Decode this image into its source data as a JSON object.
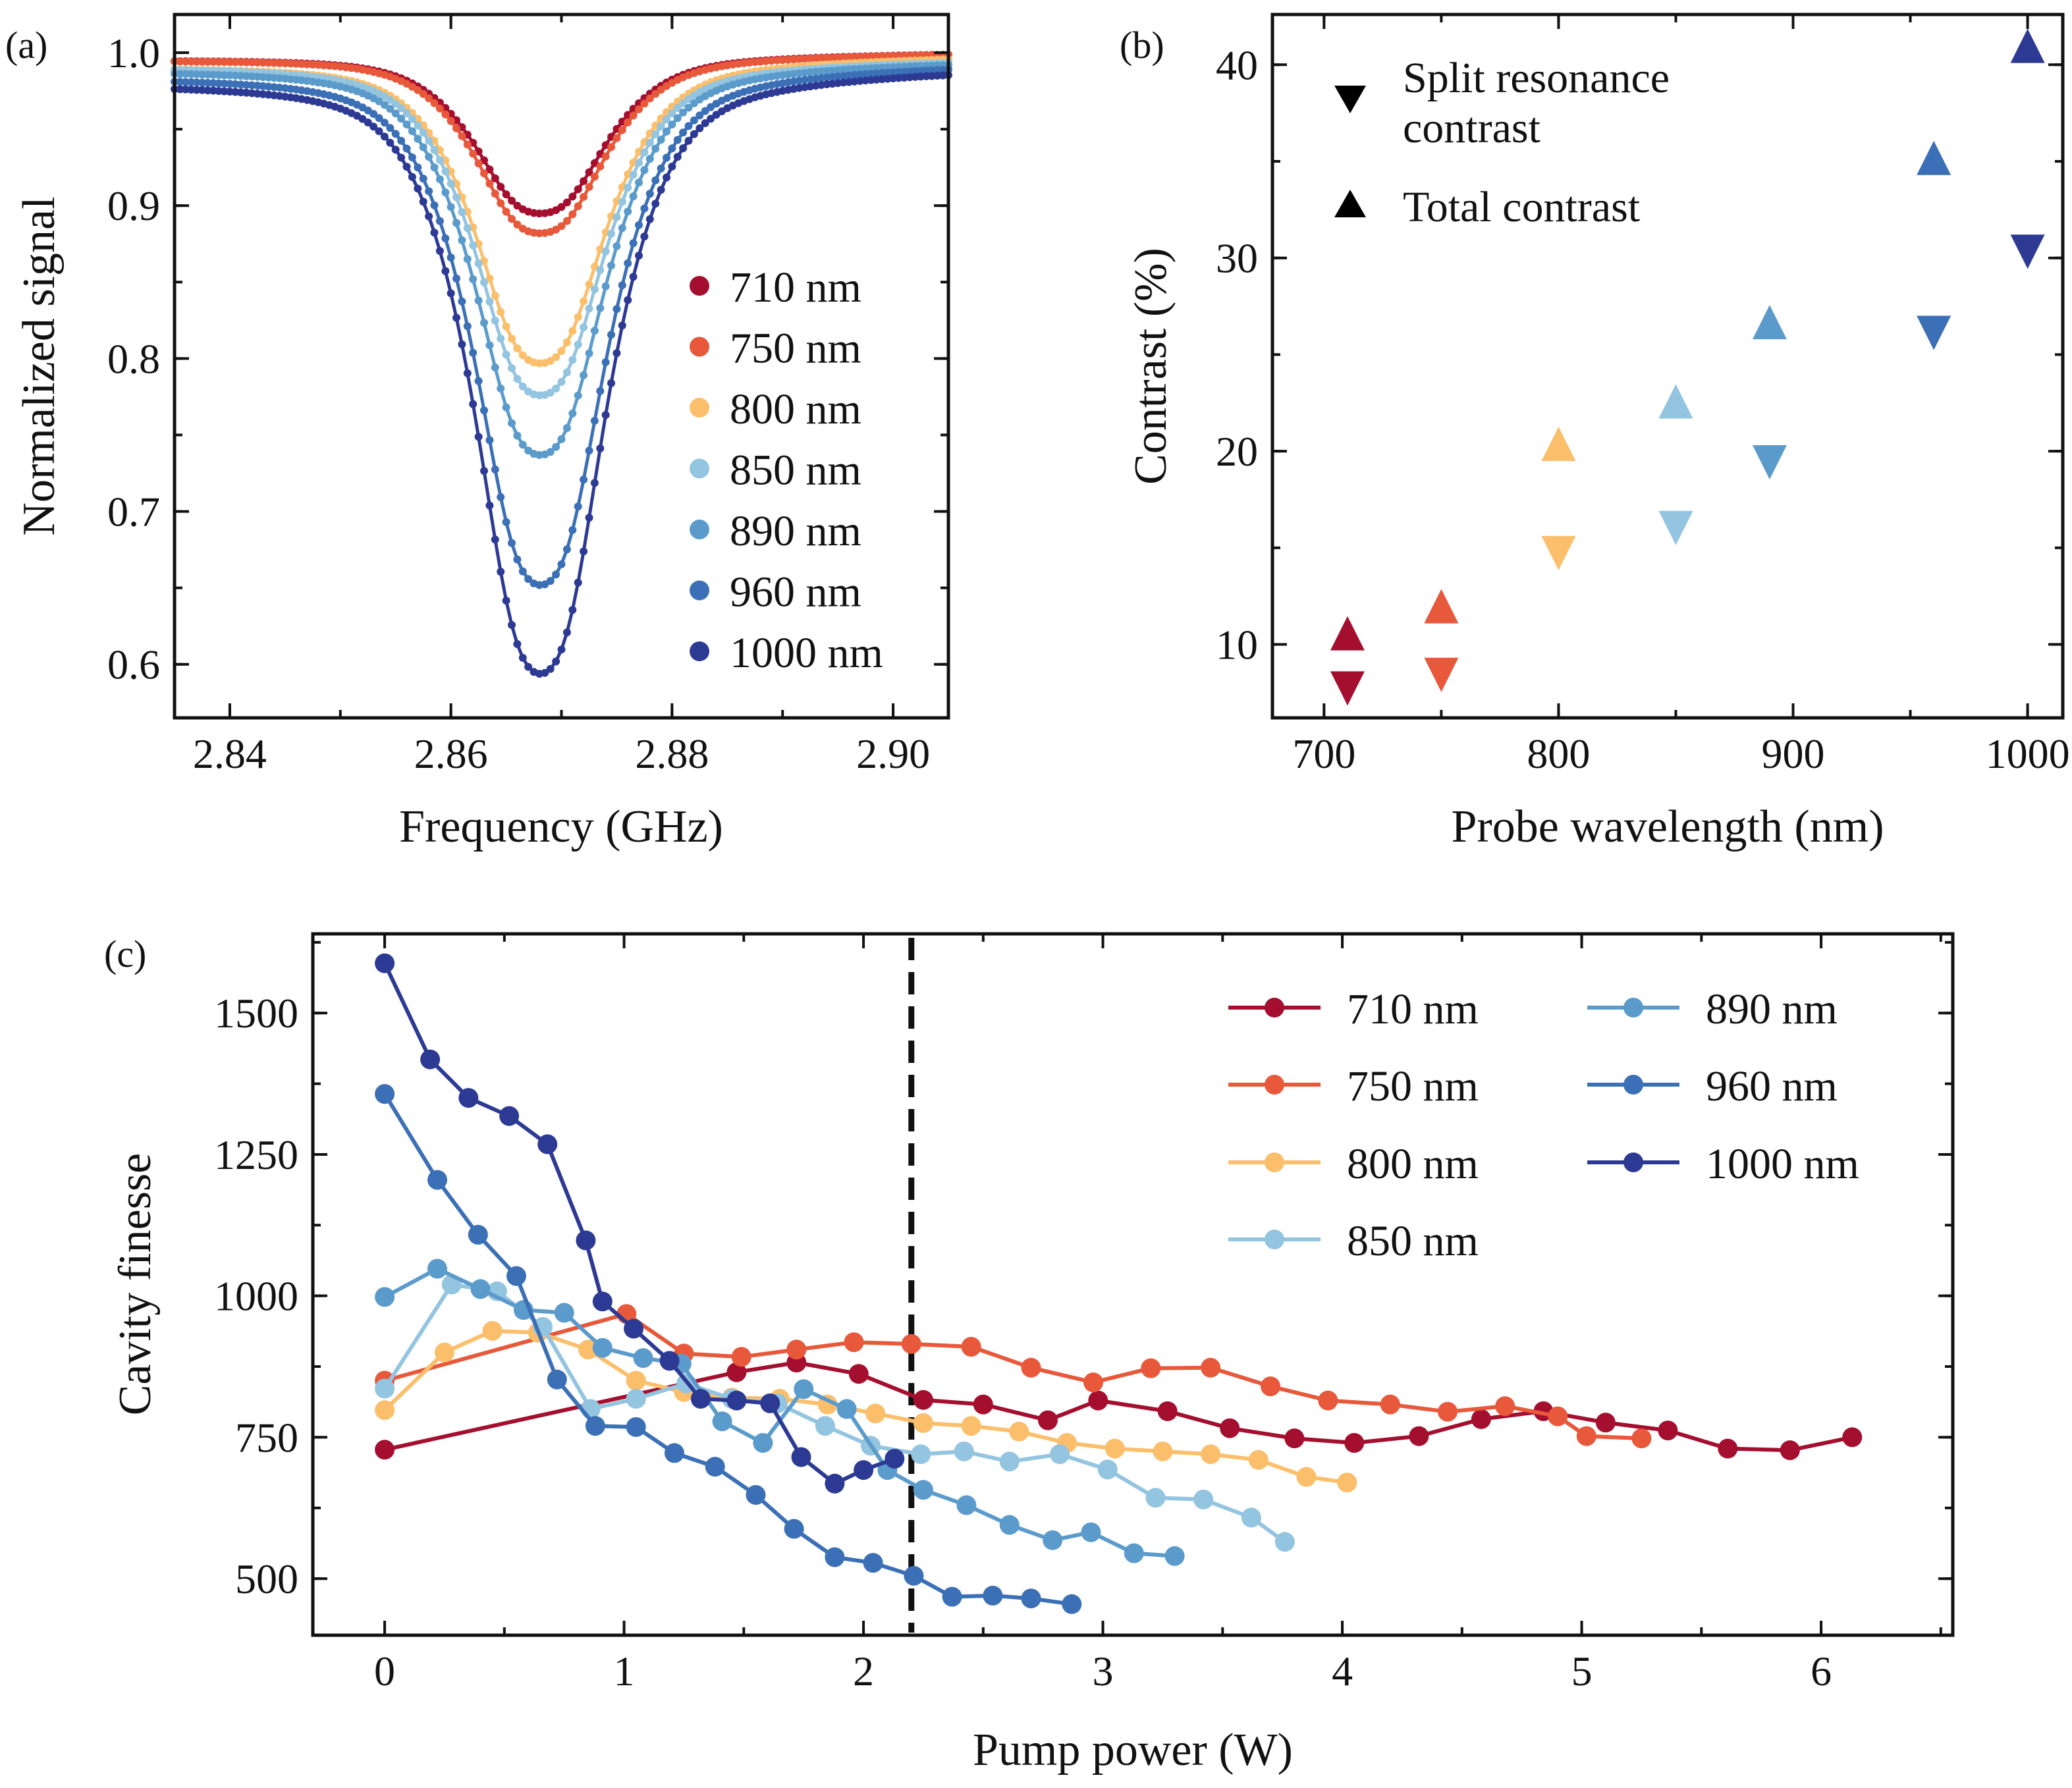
{
  "colors": {
    "710": "#a50f2f",
    "750": "#e8583a",
    "800": "#fbbf6c",
    "850": "#93c4e0",
    "890": "#5b9bcc",
    "960": "#3b6fb6",
    "1000": "#2d3a94"
  },
  "chart_data": [
    {
      "id": "a",
      "panel_label": "(a)",
      "type": "scatter",
      "title": "",
      "xlabel": "Frequency (GHz)",
      "ylabel": "Normalized signal",
      "xlim": [
        2.835,
        2.905
      ],
      "ylim": [
        0.565,
        1.025
      ],
      "xticks": [
        2.84,
        2.86,
        2.88,
        2.9
      ],
      "xtick_labels": [
        "2.84",
        "2.86",
        "2.88",
        "2.90"
      ],
      "yticks": [
        0.6,
        0.7,
        0.8,
        0.9,
        1.0
      ],
      "ytick_labels": [
        "0.6",
        "0.7",
        "0.8",
        "0.9",
        "1.0"
      ],
      "legend_position": "right",
      "resonance": {
        "centers_ghz": [
          2.8657,
          2.8705
        ],
        "width_ghz": 0.0046,
        "frequency_step_ghz": 0.0005
      },
      "series": [
        {
          "name": "710 nm",
          "key": "710",
          "min_signal": 0.895,
          "baseline_at_edges": [
            0.996,
            1.0
          ]
        },
        {
          "name": "750 nm",
          "key": "750",
          "min_signal": 0.882,
          "baseline_at_edges": [
            0.996,
            1.0
          ]
        },
        {
          "name": "800 nm",
          "key": "800",
          "min_signal": 0.797,
          "baseline_at_edges": [
            0.992,
            0.998
          ]
        },
        {
          "name": "850 nm",
          "key": "850",
          "min_signal": 0.776,
          "baseline_at_edges": [
            0.992,
            0.996
          ]
        },
        {
          "name": "890 nm",
          "key": "890",
          "min_signal": 0.737,
          "baseline_at_edges": [
            0.99,
            0.995
          ]
        },
        {
          "name": "960 nm",
          "key": "960",
          "min_signal": 0.652,
          "baseline_at_edges": [
            0.986,
            0.993
          ]
        },
        {
          "name": "1000 nm",
          "key": "1000",
          "min_signal": 0.594,
          "baseline_at_edges": [
            0.982,
            0.99
          ]
        }
      ]
    },
    {
      "id": "b",
      "panel_label": "(b)",
      "type": "scatter",
      "title": "",
      "xlabel": "Probe wavelength (nm)",
      "ylabel": "Contrast (%)",
      "xlim": [
        678,
        1015
      ],
      "ylim": [
        6.2,
        42.6
      ],
      "xticks": [
        700,
        800,
        900,
        1000
      ],
      "xtick_labels": [
        "700",
        "800",
        "900",
        "1000"
      ],
      "yticks": [
        10,
        20,
        30,
        40
      ],
      "ytick_labels": [
        "10",
        "20",
        "30",
        "40"
      ],
      "legend_position": "top-left",
      "legend": [
        {
          "marker": "down-triangle",
          "label_lines": [
            "Split resonance",
            "contrast"
          ]
        },
        {
          "marker": "up-triangle",
          "label_lines": [
            "Total contrast"
          ]
        }
      ],
      "wavelengths": [
        710,
        750,
        800,
        850,
        890,
        960,
        1000
      ],
      "color_keys": [
        "710",
        "750",
        "800",
        "850",
        "890",
        "960",
        "1000"
      ],
      "series": [
        {
          "name": "Split resonance contrast",
          "marker": "down-triangle",
          "values": [
            7.9,
            8.6,
            14.9,
            16.2,
            19.6,
            26.3,
            30.5
          ]
        },
        {
          "name": "Total contrast",
          "marker": "up-triangle",
          "values": [
            10.4,
            11.8,
            20.2,
            22.4,
            26.5,
            35.0,
            40.8
          ]
        }
      ]
    },
    {
      "id": "c",
      "panel_label": "(c)",
      "type": "line",
      "title": "",
      "xlabel": "Pump power (W)",
      "ylabel": "Cavity finesse",
      "xlim": [
        -0.3,
        6.55
      ],
      "ylim": [
        400,
        1640
      ],
      "xticks": [
        0,
        1,
        2,
        3,
        4,
        5,
        6
      ],
      "xtick_labels": [
        "0",
        "1",
        "2",
        "3",
        "4",
        "5",
        "6"
      ],
      "yticks": [
        500,
        750,
        1000,
        1250,
        1500
      ],
      "ytick_labels": [
        "500",
        "750",
        "1000",
        "1250",
        "1500"
      ],
      "vline_x": 2.2,
      "legend_position": "top-right",
      "legend_order": [
        "710",
        "750",
        "800",
        "850",
        "890",
        "960",
        "1000"
      ],
      "series": [
        {
          "name": "710 nm",
          "key": "710",
          "x": [
            0,
            1.47,
            1.72,
            1.98,
            2.25,
            2.5,
            2.77,
            2.98,
            3.27,
            3.53,
            3.8,
            4.05,
            4.32,
            4.58,
            4.84,
            5.1,
            5.36,
            5.61,
            5.87,
            6.13
          ],
          "y": [
            728,
            865,
            882,
            862,
            816,
            808,
            780,
            815,
            796,
            766,
            748,
            740,
            752,
            782,
            796,
            776,
            762,
            730,
            727,
            750
          ]
        },
        {
          "name": "750 nm",
          "key": "750",
          "x": [
            0,
            1.01,
            1.25,
            1.49,
            1.72,
            1.96,
            2.2,
            2.45,
            2.7,
            2.96,
            3.2,
            3.45,
            3.7,
            3.94,
            4.2,
            4.44,
            4.68,
            4.9,
            5.02,
            5.25
          ],
          "y": [
            850,
            968,
            898,
            892,
            905,
            918,
            915,
            910,
            873,
            847,
            872,
            873,
            840,
            815,
            808,
            795,
            805,
            787,
            752,
            748
          ]
        },
        {
          "name": "800 nm",
          "key": "800",
          "x": [
            0,
            0.25,
            0.45,
            0.64,
            0.85,
            1.05,
            1.25,
            1.45,
            1.65,
            1.85,
            2.05,
            2.25,
            2.45,
            2.65,
            2.85,
            3.05,
            3.25,
            3.45,
            3.65,
            3.85,
            4.02
          ],
          "y": [
            798,
            900,
            938,
            935,
            905,
            850,
            830,
            820,
            818,
            808,
            792,
            775,
            770,
            760,
            740,
            730,
            725,
            720,
            710,
            680,
            670
          ]
        },
        {
          "name": "850 nm",
          "key": "850",
          "x": [
            0,
            0.28,
            0.47,
            0.66,
            0.86,
            1.05,
            1.26,
            1.45,
            1.64,
            1.84,
            2.03,
            2.24,
            2.42,
            2.61,
            2.82,
            3.02,
            3.22,
            3.42,
            3.62,
            3.76
          ],
          "y": [
            836,
            1020,
            1008,
            945,
            800,
            818,
            845,
            818,
            810,
            770,
            735,
            720,
            725,
            707,
            720,
            693,
            643,
            640,
            608,
            565
          ]
        },
        {
          "name": "890 nm",
          "key": "890",
          "x": [
            0,
            0.22,
            0.4,
            0.58,
            0.75,
            0.91,
            1.08,
            1.24,
            1.41,
            1.58,
            1.75,
            1.93,
            2.1,
            2.25,
            2.43,
            2.61,
            2.79,
            2.95,
            3.13,
            3.3
          ],
          "y": [
            998,
            1048,
            1012,
            975,
            970,
            908,
            890,
            880,
            778,
            740,
            835,
            800,
            692,
            657,
            630,
            595,
            568,
            582,
            545,
            540
          ]
        },
        {
          "name": "960 nm",
          "key": "960",
          "x": [
            0,
            0.22,
            0.39,
            0.55,
            0.72,
            0.88,
            1.05,
            1.21,
            1.38,
            1.55,
            1.71,
            1.88,
            2.04,
            2.21,
            2.37,
            2.54,
            2.7,
            2.87
          ],
          "y": [
            1357,
            1205,
            1108,
            1035,
            852,
            770,
            768,
            722,
            698,
            648,
            588,
            538,
            528,
            505,
            468,
            470,
            465,
            455
          ]
        },
        {
          "name": "1000 nm",
          "key": "1000",
          "x": [
            0,
            0.19,
            0.35,
            0.52,
            0.68,
            0.84,
            0.91,
            1.04,
            1.19,
            1.32,
            1.47,
            1.61,
            1.74,
            1.88,
            2.0,
            2.13
          ],
          "y": [
            1588,
            1418,
            1350,
            1318,
            1268,
            1098,
            990,
            942,
            885,
            818,
            815,
            810,
            715,
            668,
            692,
            712
          ]
        }
      ]
    }
  ]
}
